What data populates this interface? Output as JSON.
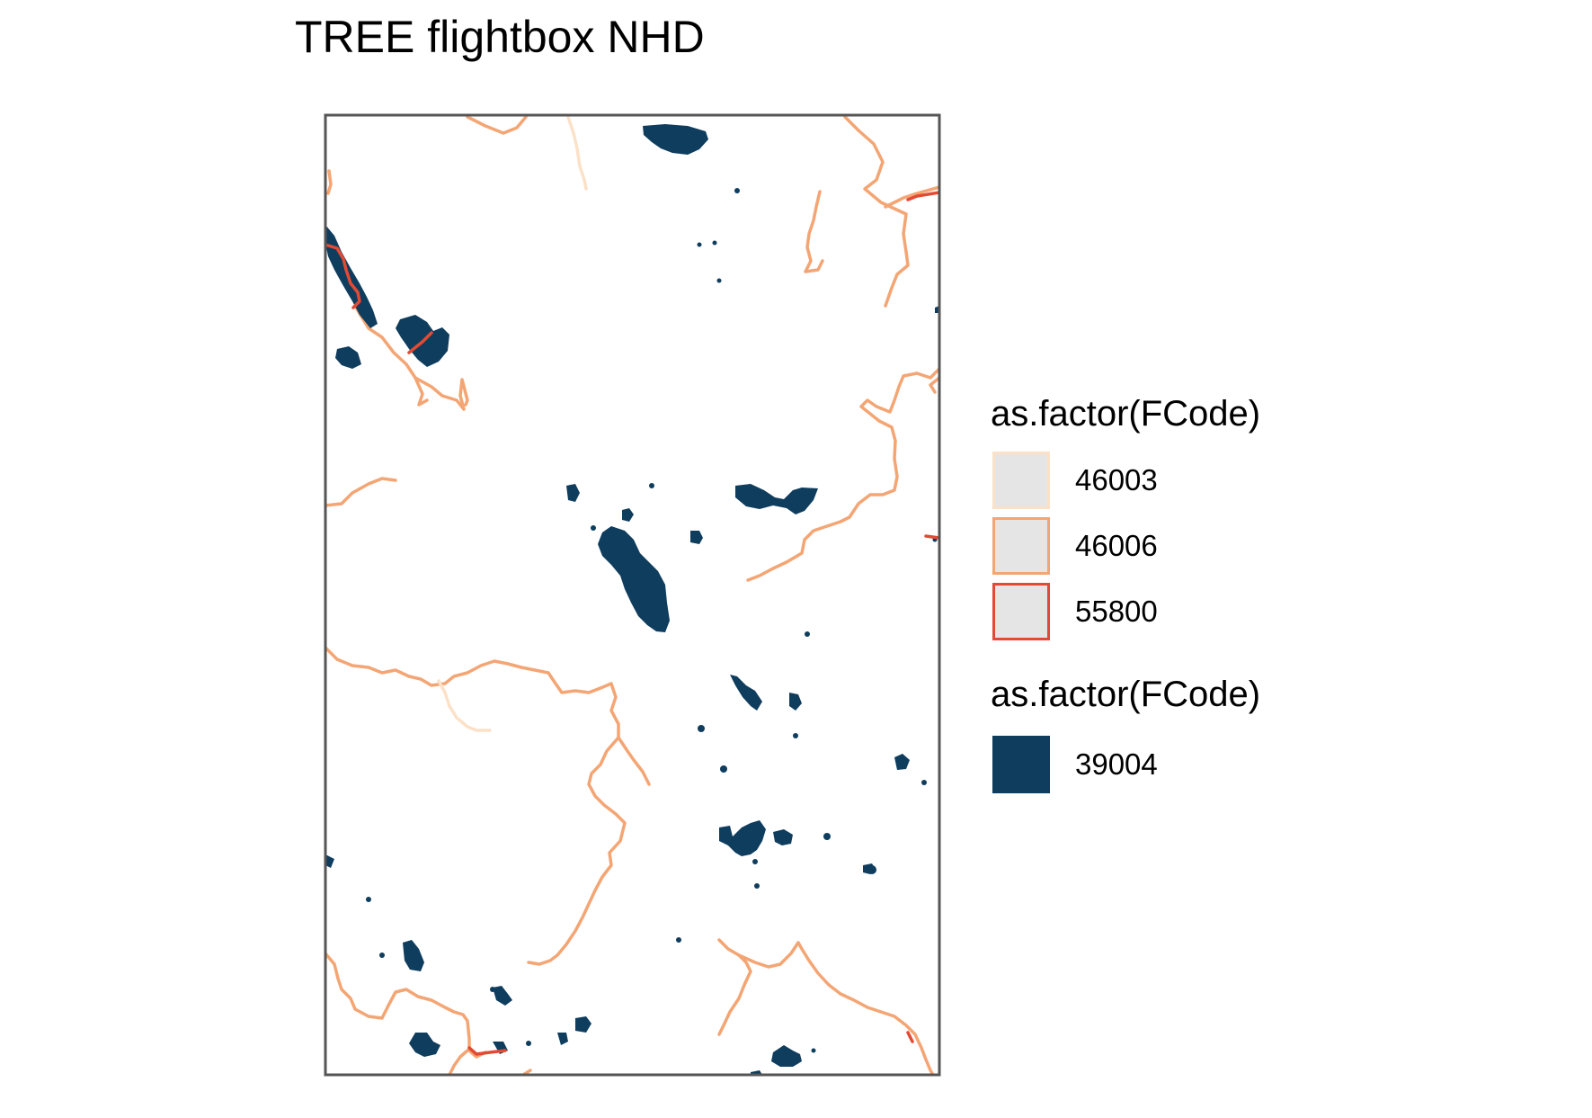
{
  "title": "TREE flightbox NHD",
  "legend_lines": {
    "title": "as.factor(FCode)",
    "items": [
      {
        "label": "46003",
        "color": "#fbe1c8"
      },
      {
        "label": "46006",
        "color": "#f4a574"
      },
      {
        "label": "55800",
        "color": "#e34a33"
      }
    ],
    "key_fill": "#e5e5e5"
  },
  "legend_polygons": {
    "title": "as.factor(FCode)",
    "items": [
      {
        "label": "39004",
        "color": "#0f3d5e"
      }
    ]
  },
  "colors": {
    "frame": "#555555",
    "water": "#0f3d5e",
    "flowline_46003": "#fbe1c8",
    "flowline_46006": "#f4a574",
    "flowline_55800": "#e34a33"
  }
}
